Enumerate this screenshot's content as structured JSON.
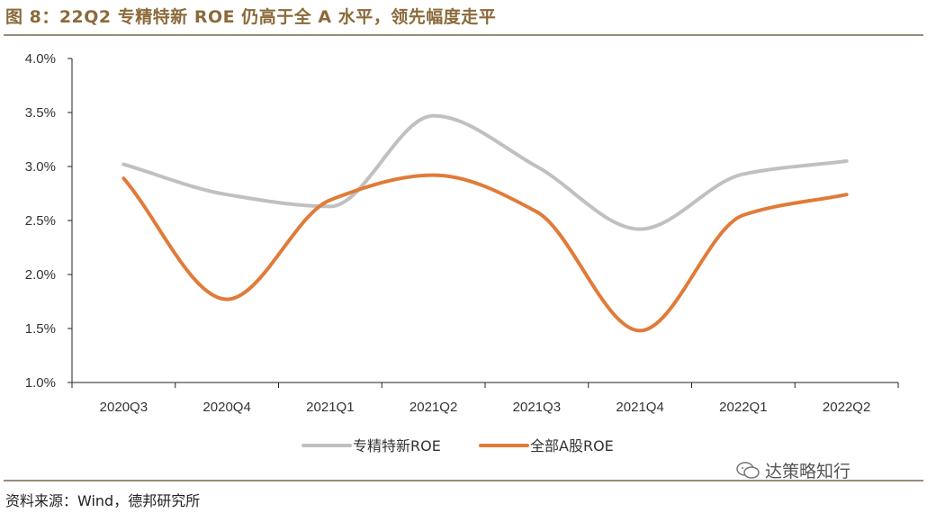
{
  "title": "图 8：22Q2 专精特新 ROE 仍高于全 A 水平，领先幅度走平",
  "source": "资料来源：Wind，德邦研究所",
  "watermark": "达策略知行",
  "colors": {
    "series1": "#c0c0c0",
    "series2": "#e07b39",
    "accent": "#8b6a3a"
  },
  "chart_data": {
    "type": "line",
    "categories": [
      "2020Q3",
      "2020Q4",
      "2021Q1",
      "2021Q2",
      "2021Q3",
      "2021Q4",
      "2022Q1",
      "2022Q2"
    ],
    "y_tick_labels": [
      "1.0%",
      "1.5%",
      "2.0%",
      "2.5%",
      "3.0%",
      "3.5%",
      "4.0%"
    ],
    "y_ticks": [
      1.0,
      1.5,
      2.0,
      2.5,
      3.0,
      3.5,
      4.0
    ],
    "ylim": [
      1.0,
      4.0
    ],
    "y_unit": "%",
    "smooth": true,
    "grid": false,
    "legend_position": "bottom",
    "series": [
      {
        "name": "专精特新ROE",
        "values": [
          3.02,
          2.74,
          2.63,
          3.47,
          3.0,
          2.42,
          2.93,
          3.05
        ],
        "color": "#c0c0c0"
      },
      {
        "name": "全部A股ROE",
        "values": [
          2.89,
          1.77,
          2.69,
          2.92,
          2.58,
          1.48,
          2.55,
          2.74
        ],
        "color": "#e07b39"
      }
    ]
  }
}
